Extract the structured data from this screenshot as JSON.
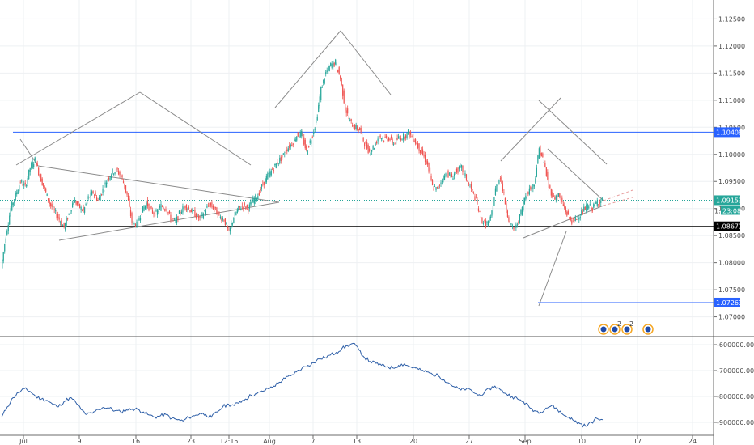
{
  "chart_data": {
    "type": "candlestick",
    "title": "",
    "price_axis": {
      "ticks": [
        "1.12500",
        "1.12000",
        "1.11500",
        "1.11000",
        "1.10500",
        "1.10000",
        "1.09500",
        "1.09000",
        "1.08500",
        "1.08000",
        "1.07500",
        "1.07000"
      ],
      "ylim": [
        1.0665,
        1.1285
      ]
    },
    "x_axis": {
      "ticks": [
        "Jul",
        "9",
        "16",
        "23",
        "12:15",
        "Aug",
        "7",
        "13",
        "20",
        "27",
        "Sep",
        "10",
        "17",
        "24"
      ]
    },
    "levels": {
      "resistance": {
        "label": "1.10409",
        "value": 1.10409,
        "color": "#2962ff"
      },
      "support": {
        "label": "1.08671",
        "value": 1.08671,
        "color": "#000000"
      },
      "target": {
        "label": "1.07263",
        "value": 1.07263,
        "color": "#2962ff"
      },
      "current": {
        "label": "1.09153",
        "value": 1.09153,
        "color": "#26a69a"
      },
      "countdown": {
        "label": "23:08",
        "prefix": "1."
      }
    },
    "price_series": [
      1.079,
      1.085,
      1.09,
      1.0925,
      1.095,
      1.094,
      1.0975,
      1.099,
      1.096,
      1.0935,
      1.091,
      1.0895,
      1.088,
      1.0865,
      1.089,
      1.0915,
      1.0905,
      1.0895,
      1.092,
      1.093,
      1.0915,
      1.0935,
      1.0955,
      1.0968,
      1.097,
      1.0955,
      1.0925,
      1.0875,
      1.087,
      1.0895,
      1.091,
      1.0895,
      1.089,
      1.0905,
      1.09,
      1.0882,
      1.0875,
      1.0895,
      1.0905,
      1.0898,
      1.089,
      1.088,
      1.0895,
      1.0908,
      1.09,
      1.0885,
      1.088,
      1.0855,
      1.0885,
      1.09,
      1.0905,
      1.09,
      1.0915,
      1.0925,
      1.0945,
      1.096,
      1.0972,
      1.0985,
      1.0995,
      1.101,
      1.102,
      1.1035,
      1.1038,
      1.1005,
      1.103,
      1.106,
      1.112,
      1.115,
      1.1165,
      1.117,
      1.114,
      1.1085,
      1.106,
      1.105,
      1.1045,
      1.102,
      1.1005,
      1.1015,
      1.1035,
      1.1028,
      1.103,
      1.102,
      1.103,
      1.1032,
      1.104,
      1.103,
      1.1015,
      1.1,
      1.098,
      1.094,
      1.0935,
      1.0955,
      1.0965,
      1.0958,
      1.097,
      1.0975,
      1.0955,
      1.0935,
      1.0915,
      1.088,
      1.087,
      1.088,
      1.0935,
      1.096,
      1.091,
      1.087,
      1.086,
      1.0885,
      1.092,
      1.0935,
      1.0945,
      1.101,
      1.0985,
      1.094,
      1.092,
      1.0925,
      1.0905,
      1.0885,
      1.0875,
      1.0885,
      1.0895,
      1.0905,
      1.09,
      1.0912,
      1.0915
    ],
    "indicator": {
      "ticks": [
        "-600000.0000",
        "-700000.0000",
        "-800000.0000",
        "-900000.0000"
      ],
      "ylim": [
        -950000,
        -575000
      ],
      "values": [
        -880000,
        -840000,
        -805000,
        -785000,
        -770000,
        -780000,
        -800000,
        -810000,
        -815000,
        -830000,
        -840000,
        -820000,
        -805000,
        -820000,
        -850000,
        -870000,
        -865000,
        -850000,
        -842000,
        -845000,
        -855000,
        -860000,
        -852000,
        -848000,
        -850000,
        -860000,
        -872000,
        -880000,
        -875000,
        -870000,
        -885000,
        -890000,
        -895000,
        -880000,
        -875000,
        -865000,
        -870000,
        -880000,
        -860000,
        -840000,
        -830000,
        -835000,
        -820000,
        -810000,
        -795000,
        -790000,
        -780000,
        -770000,
        -760000,
        -745000,
        -730000,
        -720000,
        -705000,
        -690000,
        -680000,
        -670000,
        -655000,
        -650000,
        -640000,
        -630000,
        -615000,
        -605000,
        -595000,
        -620000,
        -650000,
        -665000,
        -672000,
        -680000,
        -685000,
        -690000,
        -680000,
        -675000,
        -685000,
        -690000,
        -700000,
        -705000,
        -715000,
        -720000,
        -735000,
        -750000,
        -765000,
        -775000,
        -770000,
        -780000,
        -795000,
        -790000,
        -770000,
        -760000,
        -775000,
        -790000,
        -800000,
        -810000,
        -820000,
        -840000,
        -855000,
        -860000,
        -845000,
        -835000,
        -850000,
        -870000,
        -880000,
        -895000,
        -905000,
        -915000,
        -900000,
        -885000,
        -890000
      ]
    },
    "badges": [
      {
        "kind": "flag-icon",
        "count": ""
      },
      {
        "kind": "flag-icon",
        "count": "2"
      },
      {
        "kind": "flag-icon",
        "count": "2"
      },
      {
        "kind": "flag-icon",
        "count": ""
      }
    ],
    "drawings": "gray trend and triangle lines"
  }
}
